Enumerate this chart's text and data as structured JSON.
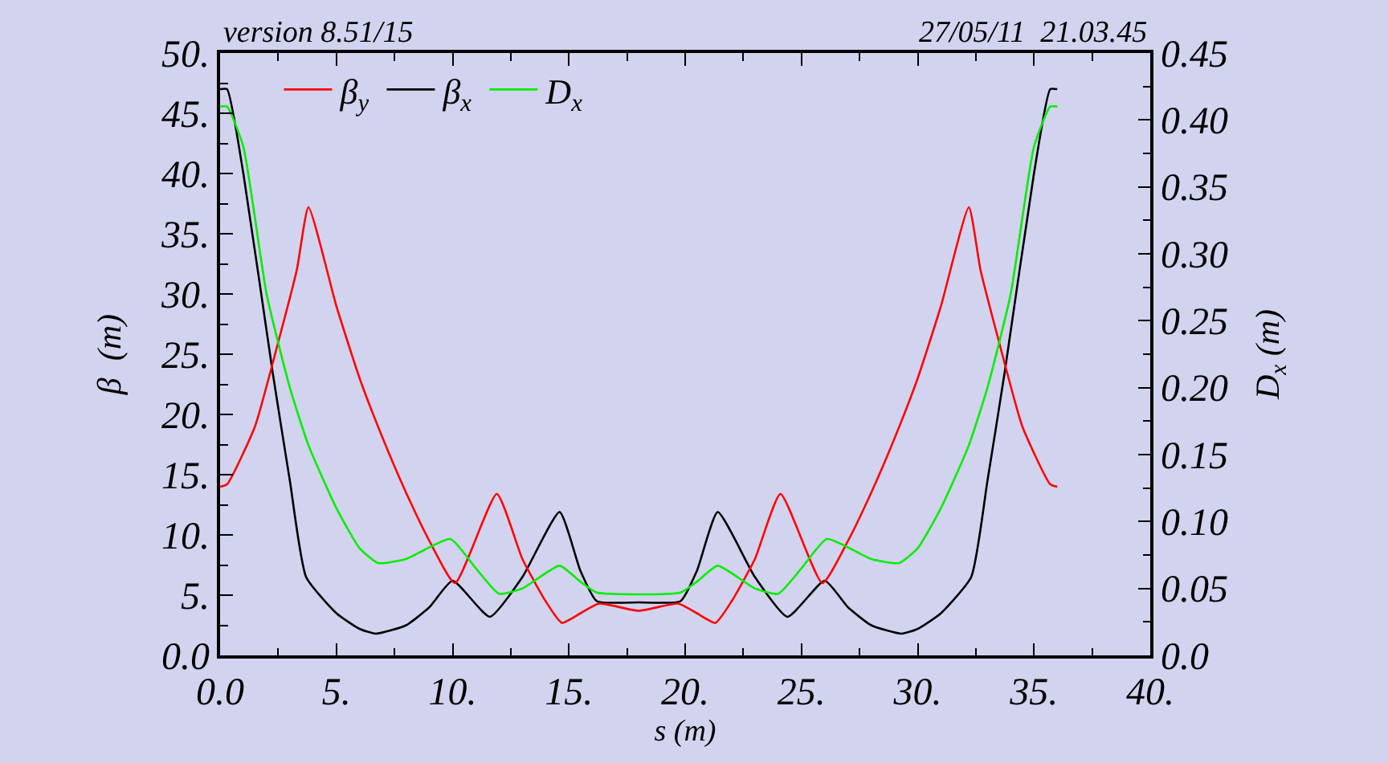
{
  "chart_data": {
    "type": "line",
    "annotations": [
      "version 8.51/15",
      "27/05/11  21.03.45"
    ],
    "xlabel": "s (m)",
    "ylabel": "β  (m)",
    "y2label": "D$_{x}$ (m)",
    "xlim": [
      0,
      40
    ],
    "xticks": [
      {
        "value": 0,
        "label": "0.0"
      },
      {
        "value": 5,
        "label": "5."
      },
      {
        "value": 10,
        "label": "10."
      },
      {
        "value": 15,
        "label": "15."
      },
      {
        "value": 20,
        "label": "20."
      },
      {
        "value": 25,
        "label": "25."
      },
      {
        "value": 30,
        "label": "30."
      },
      {
        "value": 35,
        "label": "35."
      },
      {
        "value": 40,
        "label": "40."
      }
    ],
    "ylim": [
      0,
      50
    ],
    "yticks": [
      {
        "value": 0,
        "label": "0.0"
      },
      {
        "value": 5,
        "label": "5."
      },
      {
        "value": 10,
        "label": "10."
      },
      {
        "value": 15,
        "label": "15."
      },
      {
        "value": 20,
        "label": "20."
      },
      {
        "value": 25,
        "label": "25."
      },
      {
        "value": 30,
        "label": "30."
      },
      {
        "value": 35,
        "label": "35."
      },
      {
        "value": 40,
        "label": "40."
      },
      {
        "value": 45,
        "label": "45."
      },
      {
        "value": 50,
        "label": "50."
      }
    ],
    "y2lim": [
      0,
      0.45
    ],
    "y2ticks": [
      {
        "value": 0,
        "label": "0.0"
      },
      0.05,
      {
        "value": 0.1,
        "label": "0.10"
      },
      0.15,
      {
        "value": 0.2,
        "label": "0.20"
      },
      0.25,
      {
        "value": 0.3,
        "label": "0.30"
      },
      0.35,
      {
        "value": 0.4,
        "label": "0.40"
      },
      0.45
    ],
    "grid": false,
    "legend": "top",
    "marker": "none",
    "line_style": "solid",
    "series": [
      {
        "name": "β$_{x}$",
        "color": "#000000",
        "x": [
          0,
          0.3,
          1,
          2.26,
          3,
          3.7,
          5,
          6,
          6.7,
          8,
          9,
          10,
          11.6,
          13,
          14.6,
          15.5,
          16.2,
          18,
          19.8,
          20.5,
          21.4,
          23,
          24.4,
          26,
          27,
          28,
          29.3,
          30,
          31,
          32.3,
          33,
          33.74,
          35,
          35.7,
          36
        ],
        "values": [
          47,
          47,
          40,
          23.5,
          14.5,
          6.5,
          3.5,
          2.2,
          1.8,
          2.5,
          4,
          6.2,
          3.2,
          6.5,
          11.9,
          7,
          4.5,
          4.4,
          4.5,
          7,
          11.9,
          6.5,
          3.2,
          6.2,
          4,
          2.5,
          1.8,
          2.2,
          3.5,
          6.5,
          14.5,
          23.5,
          40,
          47,
          47
        ]
      },
      {
        "name": "β$_{y}$",
        "color": "#ff0000",
        "x": [
          0,
          0.3,
          1.5,
          2.5,
          3.3,
          3.8,
          5,
          6,
          7,
          8,
          9,
          10.1,
          11.9,
          13,
          14,
          14.7,
          15.5,
          16.3,
          18,
          19.7,
          20.5,
          21.3,
          22,
          23,
          24.1,
          25.9,
          27,
          28,
          29,
          30,
          31,
          32.2,
          32.7,
          33.5,
          34.5,
          35.7,
          36
        ],
        "values": [
          14,
          14.2,
          19,
          26,
          32,
          37.2,
          29,
          23,
          18,
          13.5,
          9.5,
          6,
          13.4,
          8,
          4.5,
          2.7,
          3.5,
          4.3,
          3.7,
          4.3,
          3.5,
          2.7,
          4.5,
          8,
          13.4,
          6,
          9.5,
          13.5,
          18,
          23,
          29,
          37.2,
          32,
          26,
          19,
          14.2,
          14
        ]
      },
      {
        "name": "D$_{x}$",
        "color": "#00ee00",
        "axis": "y2",
        "x": [
          0,
          0.3,
          1,
          2,
          3,
          3.8,
          5,
          6,
          6.8,
          8,
          9.9,
          11,
          12,
          13,
          14.6,
          15.5,
          16.2,
          19.8,
          20.5,
          21.4,
          23,
          24,
          25,
          26.1,
          28,
          29.2,
          30,
          31,
          32.2,
          33,
          34,
          35,
          35.7,
          36
        ],
        "values": [
          0.41,
          0.41,
          0.38,
          0.27,
          0.2,
          0.157,
          0.11,
          0.08,
          0.069,
          0.072,
          0.087,
          0.065,
          0.046,
          0.05,
          0.067,
          0.055,
          0.047,
          0.047,
          0.055,
          0.067,
          0.05,
          0.046,
          0.065,
          0.087,
          0.072,
          0.069,
          0.08,
          0.11,
          0.157,
          0.2,
          0.27,
          0.38,
          0.41,
          0.41
        ]
      }
    ]
  }
}
